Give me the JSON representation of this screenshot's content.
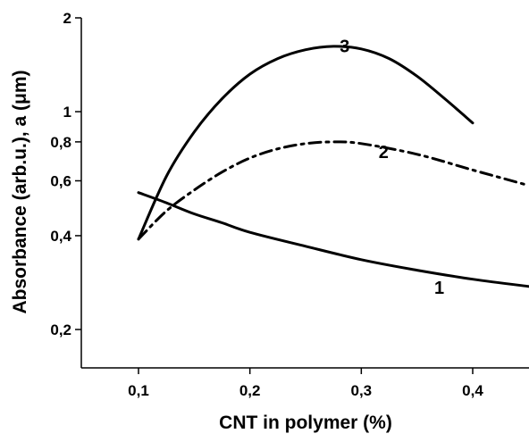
{
  "chart_data": {
    "type": "line",
    "title": "",
    "xlabel": "CNT in polymer (%)",
    "ylabel": "Absorbance (arb.u.), a (μm)",
    "xlim": [
      0.05,
      0.45
    ],
    "ylim": [
      0.15,
      2
    ],
    "y_scale": "log",
    "grid": false,
    "legend": "none",
    "x_ticks": [
      {
        "value": 0.1,
        "label": "0,1"
      },
      {
        "value": 0.2,
        "label": "0,2"
      },
      {
        "value": 0.3,
        "label": "0,3"
      },
      {
        "value": 0.4,
        "label": "0,4"
      }
    ],
    "y_ticks": [
      {
        "value": 0.2,
        "label": "0,2"
      },
      {
        "value": 0.4,
        "label": "0,4"
      },
      {
        "value": 0.6,
        "label": "0,6"
      },
      {
        "value": 0.8,
        "label": "0,8"
      },
      {
        "value": 1,
        "label": "1"
      },
      {
        "value": 2,
        "label": "2"
      }
    ],
    "series": [
      {
        "name": "1",
        "style": "solid",
        "color": "#000000",
        "label_at": [
          0.37,
          0.26
        ],
        "x": [
          0.1,
          0.125,
          0.15,
          0.175,
          0.2,
          0.25,
          0.3,
          0.35,
          0.4,
          0.45
        ],
        "y": [
          0.55,
          0.51,
          0.47,
          0.44,
          0.41,
          0.37,
          0.335,
          0.31,
          0.29,
          0.275
        ]
      },
      {
        "name": "2",
        "style": "dashdot",
        "color": "#000000",
        "label_at": [
          0.32,
          0.71
        ],
        "x": [
          0.1,
          0.125,
          0.15,
          0.175,
          0.2,
          0.225,
          0.25,
          0.275,
          0.3,
          0.35,
          0.4,
          0.45
        ],
        "y": [
          0.39,
          0.48,
          0.56,
          0.64,
          0.71,
          0.76,
          0.79,
          0.8,
          0.79,
          0.73,
          0.65,
          0.58
        ]
      },
      {
        "name": "3",
        "style": "solid",
        "color": "#000000",
        "label_at": [
          0.285,
          1.55
        ],
        "x": [
          0.1,
          0.125,
          0.15,
          0.175,
          0.2,
          0.225,
          0.25,
          0.275,
          0.3,
          0.325,
          0.35,
          0.375,
          0.4
        ],
        "y": [
          0.39,
          0.62,
          0.86,
          1.1,
          1.32,
          1.48,
          1.58,
          1.62,
          1.59,
          1.48,
          1.3,
          1.1,
          0.92
        ]
      }
    ]
  }
}
